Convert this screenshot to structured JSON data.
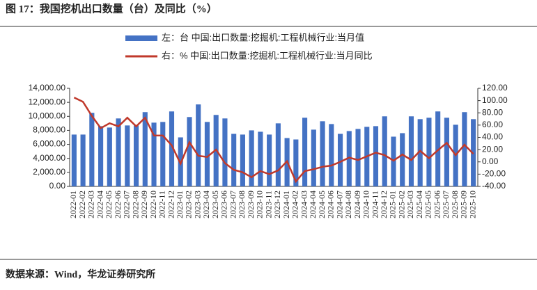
{
  "chart_data": {
    "type": "bar-line",
    "title": "图 17：我国挖机出口数量（台）及同比（%）",
    "source": "数据来源：Wind，华龙证券研究所",
    "categories": [
      "2022-01",
      "2022-02",
      "2022-03",
      "2022-04",
      "2022-05",
      "2022-06",
      "2022-07",
      "2022-08",
      "2022-09",
      "2022-10",
      "2022-11",
      "2022-12",
      "2023-01",
      "2023-02",
      "2023-03",
      "2023-04",
      "2023-05",
      "2023-06",
      "2023-07",
      "2023-08",
      "2023-09",
      "2023-10",
      "2023-11",
      "2023-12",
      "2024-01",
      "2024-02",
      "2024-03",
      "2024-04",
      "2024-05",
      "2024-06",
      "2024-07",
      "2024-08",
      "2024-09",
      "2024-10",
      "2024-11",
      "2024-12",
      "2025-01",
      "2025-02",
      "2025-03",
      "2025-04",
      "2025-05",
      "2025-06",
      "2025-07",
      "2025-08",
      "2025-09",
      "2025-10"
    ],
    "series": [
      {
        "name": "左：台 中国:出口数量:挖掘机:工程机械行业:当月值",
        "color": "#4472c4",
        "type": "bar",
        "axis": "y",
        "values": [
          7400,
          7400,
          10500,
          8600,
          8400,
          9700,
          8700,
          8700,
          10600,
          9100,
          9200,
          10700,
          7000,
          9900,
          11700,
          9200,
          10200,
          9700,
          7500,
          7400,
          8000,
          7800,
          7400,
          9000,
          6900,
          6700,
          9800,
          8100,
          9300,
          8900,
          7500,
          7900,
          8200,
          8500,
          8600,
          10000,
          7100,
          7600,
          10000,
          9600,
          9800,
          10700,
          9800,
          8800,
          10600,
          9600
        ]
      },
      {
        "name": "右：% 中国:出口数量:挖掘机:工程机械行业:当月同比",
        "color": "#c0392b",
        "type": "line",
        "axis": "y2",
        "values": [
          105,
          98,
          75,
          55,
          63,
          58,
          72,
          58,
          72,
          43,
          43,
          27,
          -3,
          32,
          10,
          8,
          20,
          -2,
          -13,
          -17,
          -25,
          -15,
          -20,
          -14,
          1,
          -32,
          -15,
          -12,
          -8,
          -6,
          0,
          7,
          3,
          9,
          15,
          11,
          2,
          12,
          3,
          18,
          6,
          19,
          31,
          11,
          28,
          13
        ]
      }
    ],
    "ylim": [
      0,
      14000
    ],
    "yticks": [
      {
        "value": 0,
        "label": "0.00"
      },
      {
        "value": 2000,
        "label": "2,000.00"
      },
      {
        "value": 4000,
        "label": "4,000.00"
      },
      {
        "value": 6000,
        "label": "6,000.00"
      },
      {
        "value": 8000,
        "label": "8,000.00"
      },
      {
        "value": 10000,
        "label": "10,000.00"
      },
      {
        "value": 12000,
        "label": "12,000.00"
      },
      {
        "value": 14000,
        "label": "14,000.00"
      }
    ],
    "y2lim": [
      -40,
      120
    ],
    "y2ticks": [
      {
        "value": -40,
        "label": "-40.00"
      },
      {
        "value": -20,
        "label": "-20.00"
      },
      {
        "value": 0,
        "label": "0.00"
      },
      {
        "value": 20,
        "label": "20.00"
      },
      {
        "value": 40,
        "label": "40.00"
      },
      {
        "value": 60,
        "label": "60.00"
      },
      {
        "value": 80,
        "label": "80.00"
      },
      {
        "value": 100,
        "label": "100.00"
      },
      {
        "value": 120,
        "label": "120.00"
      }
    ]
  }
}
